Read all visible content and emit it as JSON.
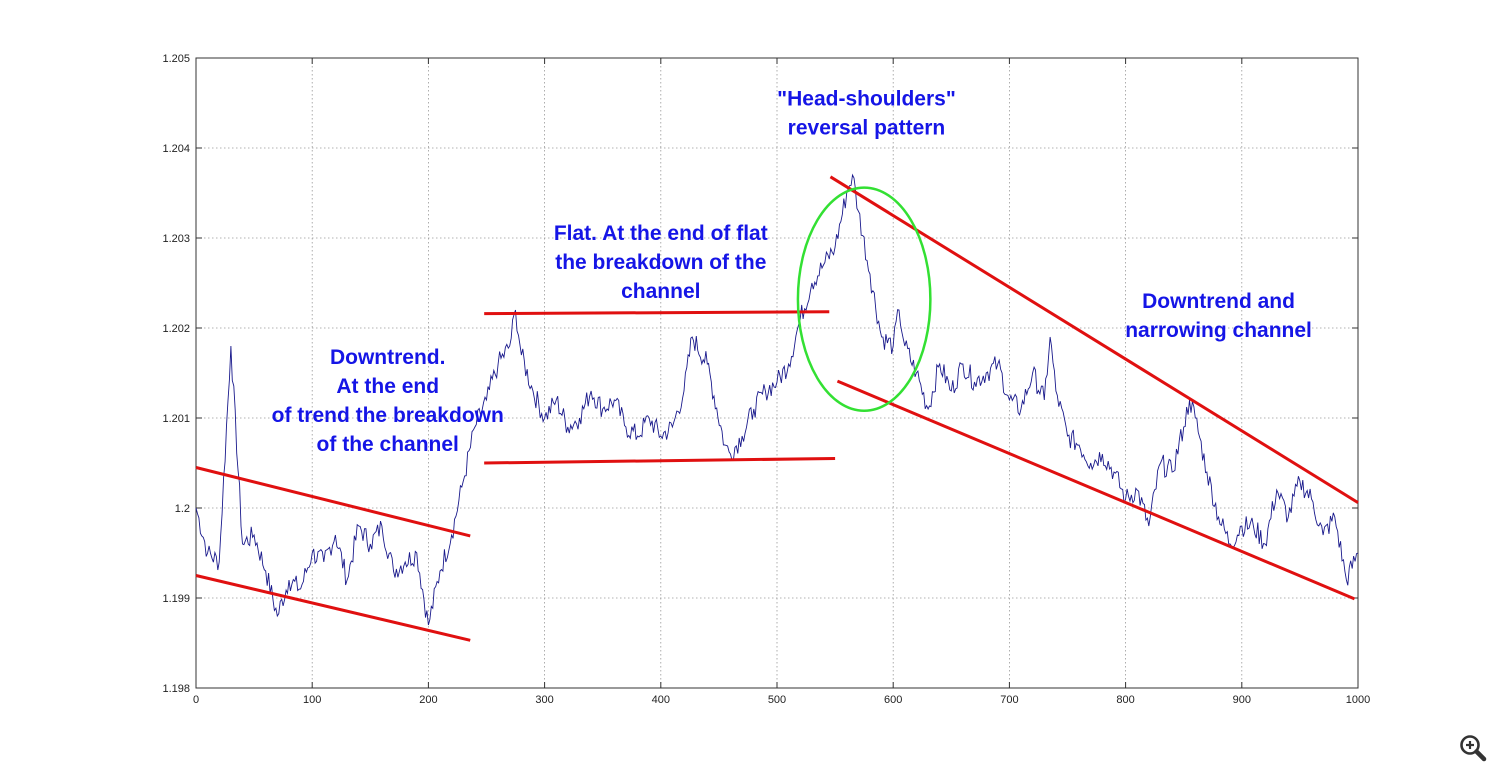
{
  "chart_data": {
    "type": "line",
    "title": "",
    "xlabel": "",
    "ylabel": "",
    "xlim": [
      0,
      1000
    ],
    "ylim": [
      1.198,
      1.205
    ],
    "grid": true,
    "x_ticks": [
      0,
      100,
      200,
      300,
      400,
      500,
      600,
      700,
      800,
      900,
      1000
    ],
    "y_ticks": [
      1.198,
      1.199,
      1.2,
      1.201,
      1.202,
      1.203,
      1.204,
      1.205
    ],
    "x_tick_labels": [
      "0",
      "100",
      "200",
      "300",
      "400",
      "500",
      "600",
      "700",
      "800",
      "900",
      "1000"
    ],
    "y_tick_labels": [
      "1.198",
      "1.199",
      "1.2",
      "1.201",
      "1.202",
      "1.203",
      "1.204",
      "1.205"
    ],
    "series": [
      {
        "color": "#1a1a8c",
        "x": [
          0,
          10,
          20,
          30,
          40,
          50,
          60,
          70,
          80,
          90,
          100,
          110,
          120,
          130,
          140,
          150,
          160,
          170,
          180,
          190,
          200,
          210,
          220,
          230,
          240,
          250,
          260,
          270,
          275,
          280,
          290,
          300,
          310,
          320,
          330,
          340,
          350,
          360,
          370,
          380,
          390,
          400,
          410,
          420,
          427,
          440,
          455,
          460,
          470,
          480,
          490,
          500,
          510,
          520,
          530,
          540,
          550,
          560,
          565,
          570,
          580,
          590,
          600,
          605,
          610,
          620,
          630,
          640,
          650,
          660,
          670,
          680,
          690,
          700,
          710,
          720,
          730,
          735,
          740,
          750,
          760,
          770,
          780,
          790,
          800,
          810,
          820,
          830,
          840,
          850,
          855,
          860,
          870,
          880,
          890,
          900,
          910,
          920,
          930,
          940,
          950,
          960,
          970,
          980,
          990,
          1000
        ],
        "values": [
          1.2,
          1.1995,
          1.1994,
          1.2018,
          1.1996,
          1.1997,
          1.1993,
          1.1988,
          1.1992,
          1.1991,
          1.1995,
          1.1994,
          1.1997,
          1.1992,
          1.1998,
          1.1996,
          1.1998,
          1.1993,
          1.1994,
          1.1995,
          1.1987,
          1.1993,
          1.1997,
          1.2003,
          1.2009,
          1.2012,
          1.2016,
          1.2018,
          1.2022,
          1.2017,
          1.2013,
          1.201,
          1.2012,
          1.2009,
          1.201,
          1.2013,
          1.2011,
          1.2012,
          1.2009,
          1.2008,
          1.201,
          1.2008,
          1.2009,
          1.2013,
          1.2019,
          1.2016,
          1.2007,
          1.2006,
          1.2008,
          1.2011,
          1.2013,
          1.2014,
          1.2016,
          1.2021,
          1.2025,
          1.2027,
          1.2029,
          1.2035,
          1.2037,
          1.2033,
          1.2026,
          1.2019,
          1.2018,
          1.2022,
          1.2018,
          1.2015,
          1.2011,
          1.2016,
          1.2013,
          1.2016,
          1.2014,
          1.2015,
          1.2016,
          1.2012,
          1.2011,
          1.2015,
          1.2012,
          1.2019,
          1.2013,
          1.2008,
          1.2007,
          1.2005,
          1.2006,
          1.2004,
          1.2001,
          1.2002,
          1.1998,
          1.2005,
          1.2004,
          1.2009,
          1.2012,
          1.201,
          1.2004,
          1.1999,
          1.1996,
          1.1998,
          1.1998,
          1.1996,
          1.2002,
          1.1999,
          1.2003,
          1.2001,
          1.1997,
          1.1999,
          1.1992,
          1.1995
        ]
      }
    ],
    "trend_lines": [
      {
        "color": "#e01010",
        "x": [
          0,
          236
        ],
        "y": [
          1.20045,
          1.19969
        ]
      },
      {
        "color": "#e01010",
        "x": [
          0,
          236
        ],
        "y": [
          1.19925,
          1.19853
        ]
      },
      {
        "color": "#e01010",
        "x": [
          248,
          545
        ],
        "y": [
          1.20216,
          1.20218
        ]
      },
      {
        "color": "#e01010",
        "x": [
          248,
          550
        ],
        "y": [
          1.2005,
          1.20055
        ]
      },
      {
        "color": "#e01010",
        "x": [
          546,
          1000
        ],
        "y": [
          1.20368,
          1.20006
        ]
      },
      {
        "color": "#e01010",
        "x": [
          552,
          997
        ],
        "y": [
          1.20141,
          1.19899
        ]
      }
    ],
    "ellipse": {
      "color": "#33e033",
      "cx": 575,
      "cy": 1.20232,
      "rx": 57,
      "ry": 0.00124
    },
    "annotations": [
      {
        "id": "downtrend-start",
        "lines": [
          "Downtrend.",
          "At the end",
          "of trend the breakdown",
          "of the channel"
        ],
        "x": 165,
        "y": 1.2016
      },
      {
        "id": "flat",
        "lines": [
          "Flat. At the end of flat",
          "the breakdown of the",
          "channel"
        ],
        "x": 400,
        "y": 1.20298
      },
      {
        "id": "head-shoulders",
        "lines": [
          "\"Head-shoulders\"",
          "reversal pattern"
        ],
        "x": 577,
        "y": 1.20447
      },
      {
        "id": "downtrend-narrowing",
        "lines": [
          "Downtrend and",
          "narrowing channel"
        ],
        "x": 880,
        "y": 1.20222
      }
    ]
  },
  "toolbar": {
    "zoom_icon": "zoom-in-magnifier-icon"
  }
}
